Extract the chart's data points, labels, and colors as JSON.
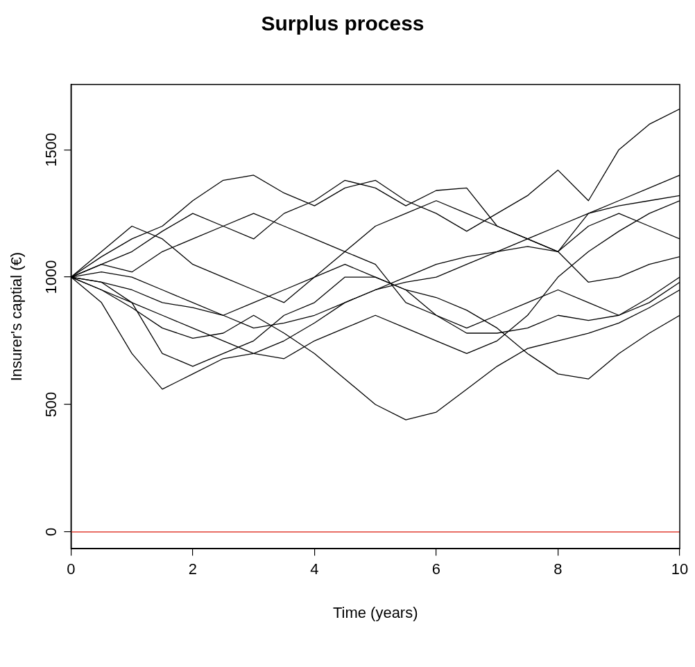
{
  "chart_data": {
    "type": "line",
    "title": "Surplus process",
    "xlabel": "Time (years)",
    "ylabel": "Insurer's captial (€)",
    "x": [
      0,
      0.5,
      1,
      1.5,
      2,
      2.5,
      3,
      3.5,
      4,
      4.5,
      5,
      5.5,
      6,
      6.5,
      7,
      7.5,
      8,
      8.5,
      9,
      9.5,
      10
    ],
    "series": [
      {
        "color": "#000000",
        "values": [
          1000,
          1080,
          1150,
          1200,
          1300,
          1380,
          1400,
          1330,
          1280,
          1350,
          1380,
          1300,
          1250,
          1180,
          1250,
          1320,
          1420,
          1300,
          1500,
          1600,
          1660
        ]
      },
      {
        "color": "#000000",
        "values": [
          1000,
          1050,
          1100,
          1180,
          1250,
          1200,
          1150,
          1250,
          1300,
          1380,
          1350,
          1280,
          1340,
          1350,
          1200,
          1150,
          1100,
          1250,
          1300,
          1350,
          1400
        ]
      },
      {
        "color": "#000000",
        "values": [
          1000,
          950,
          880,
          800,
          760,
          780,
          850,
          780,
          700,
          600,
          500,
          440,
          470,
          560,
          650,
          720,
          750,
          780,
          820,
          880,
          950
        ]
      },
      {
        "color": "#000000",
        "values": [
          1000,
          900,
          700,
          560,
          620,
          680,
          700,
          750,
          820,
          900,
          950,
          980,
          1000,
          1050,
          1100,
          1120,
          1100,
          980,
          1000,
          1050,
          1080
        ]
      },
      {
        "color": "#000000",
        "values": [
          1000,
          980,
          900,
          700,
          650,
          700,
          750,
          850,
          900,
          1000,
          1000,
          950,
          920,
          870,
          800,
          700,
          620,
          600,
          700,
          780,
          850
        ]
      },
      {
        "color": "#000000",
        "values": [
          1000,
          1020,
          1000,
          950,
          900,
          850,
          800,
          820,
          850,
          900,
          950,
          1000,
          1050,
          1080,
          1100,
          1150,
          1200,
          1250,
          1280,
          1300,
          1320
        ]
      },
      {
        "color": "#000000",
        "values": [
          1000,
          1050,
          1020,
          1100,
          1150,
          1200,
          1250,
          1200,
          1150,
          1100,
          1050,
          900,
          850,
          800,
          850,
          900,
          950,
          900,
          850,
          900,
          980
        ]
      },
      {
        "color": "#000000",
        "values": [
          1000,
          980,
          950,
          900,
          880,
          850,
          900,
          950,
          1000,
          1050,
          1000,
          950,
          850,
          780,
          780,
          800,
          850,
          830,
          850,
          920,
          1000
        ]
      },
      {
        "color": "#000000",
        "values": [
          1000,
          1100,
          1200,
          1150,
          1050,
          1000,
          950,
          900,
          1000,
          1100,
          1200,
          1250,
          1300,
          1250,
          1200,
          1150,
          1100,
          1200,
          1250,
          1200,
          1150
        ]
      },
      {
        "color": "#000000",
        "values": [
          1000,
          950,
          900,
          850,
          800,
          750,
          700,
          680,
          750,
          800,
          850,
          800,
          750,
          700,
          750,
          850,
          1000,
          1100,
          1180,
          1250,
          1300
        ]
      }
    ],
    "xlim": [
      0,
      10
    ],
    "xticks": [
      0,
      2,
      4,
      6,
      8,
      10
    ],
    "ylim": [
      -66,
      1756
    ],
    "yticks": [
      0,
      500,
      1000,
      1500
    ],
    "ref_lines": [
      {
        "axis": "y",
        "value": 0,
        "color": "#e03c31"
      }
    ],
    "legend": false,
    "grid": false,
    "marker": "none",
    "line_style": "solid"
  }
}
